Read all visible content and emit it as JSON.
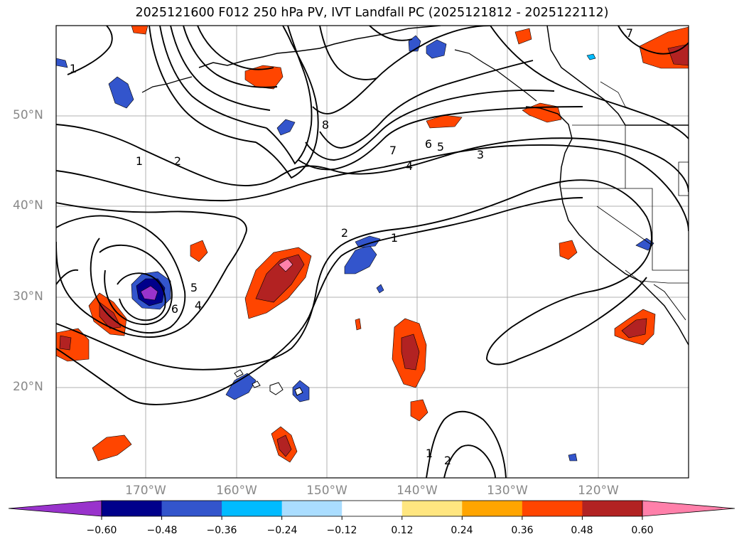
{
  "title": "2025121600 F012 250 hPa PV, IVT Landfall PC (2025121812 - 2025122112)",
  "lat_labels": [
    "50°N",
    "40°N",
    "30°N",
    "20°N"
  ],
  "lon_labels": [
    "170°W",
    "160°W",
    "150°W",
    "140°W",
    "130°W",
    "120°W"
  ],
  "colorbar": {
    "tick_labels": [
      "−0.60",
      "−0.48",
      "−0.36",
      "−0.24",
      "−0.12",
      "0.12",
      "0.24",
      "0.36",
      "0.48",
      "0.60"
    ],
    "colors": [
      "#9933cc",
      "#00008b",
      "#3355cc",
      "#00bbff",
      "#aaddff",
      "#ffffff",
      "#ffe680",
      "#ffa500",
      "#ff4500",
      "#b22222",
      "#ff80aa"
    ]
  },
  "pv_contour_labels": [
    "1",
    "1",
    "2",
    "8",
    "7",
    "6",
    "5",
    "4",
    "3",
    "2",
    "1",
    "6",
    "5",
    "4",
    "1",
    "2",
    "7"
  ],
  "map_extent": {
    "lon": [
      -180,
      -110
    ],
    "lat": [
      10,
      60
    ]
  }
}
